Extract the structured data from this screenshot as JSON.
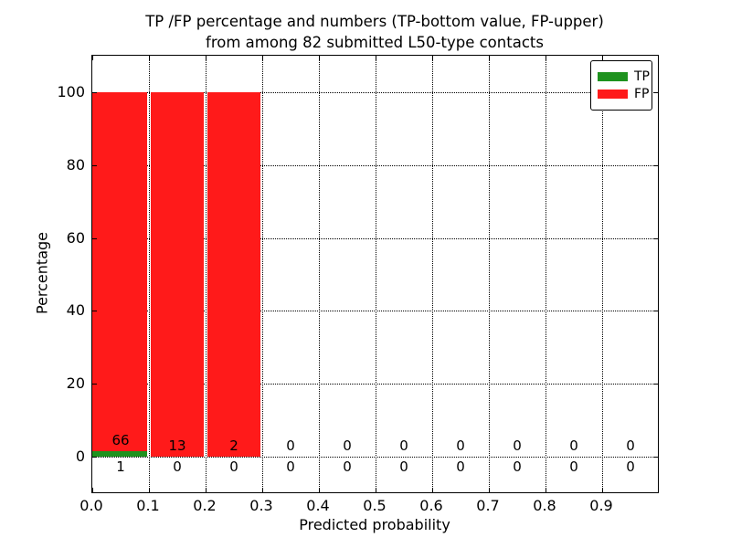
{
  "title": {
    "line1": "TP /FP percentage and numbers (TP-bottom value, FP-upper)",
    "line2": "from among 82 submitted L50-type contacts"
  },
  "axes": {
    "x_label": "Predicted probability",
    "y_label": "Percentage"
  },
  "legend": {
    "items": [
      {
        "label": "TP",
        "color": "#1e921e"
      },
      {
        "label": "FP",
        "color": "#ff1a1a"
      }
    ]
  },
  "colors": {
    "tp_green": "#1e921e",
    "fp_red": "#ff1a1a",
    "grid": "#000000",
    "background": "#ffffff"
  },
  "chart_data": {
    "type": "bar",
    "stacked": true,
    "title": "TP /FP percentage and numbers (TP-bottom value, FP-upper) from among 82 submitted L50-type contacts",
    "xlabel": "Predicted probability",
    "ylabel": "Percentage",
    "total_submitted": 82,
    "bins": [
      "0.0-0.1",
      "0.1-0.2",
      "0.2-0.3",
      "0.3-0.4",
      "0.4-0.5",
      "0.5-0.6",
      "0.6-0.7",
      "0.7-0.8",
      "0.8-0.9",
      "0.9-1.0"
    ],
    "bin_centers": [
      0.05,
      0.15,
      0.25,
      0.35,
      0.45,
      0.55,
      0.65,
      0.75,
      0.85,
      0.95
    ],
    "x_ticks": [
      "0.0",
      "0.1",
      "0.2",
      "0.3",
      "0.4",
      "0.5",
      "0.6",
      "0.7",
      "0.8",
      "0.9"
    ],
    "y_ticks": [
      0,
      20,
      40,
      60,
      80,
      100
    ],
    "xlim": [
      0.0,
      1.0
    ],
    "ylim": [
      -10,
      110
    ],
    "grid": "dotted",
    "legend_position": "upper right",
    "series": [
      {
        "name": "TP",
        "color": "#1e921e",
        "counts": [
          1,
          0,
          0,
          0,
          0,
          0,
          0,
          0,
          0,
          0
        ],
        "percentages": [
          1.5,
          0,
          0,
          0,
          0,
          0,
          0,
          0,
          0,
          0
        ]
      },
      {
        "name": "FP",
        "color": "#ff1a1a",
        "counts": [
          66,
          13,
          2,
          0,
          0,
          0,
          0,
          0,
          0,
          0
        ],
        "percentages": [
          98.5,
          100,
          100,
          0,
          0,
          0,
          0,
          0,
          0,
          0
        ]
      }
    ]
  }
}
